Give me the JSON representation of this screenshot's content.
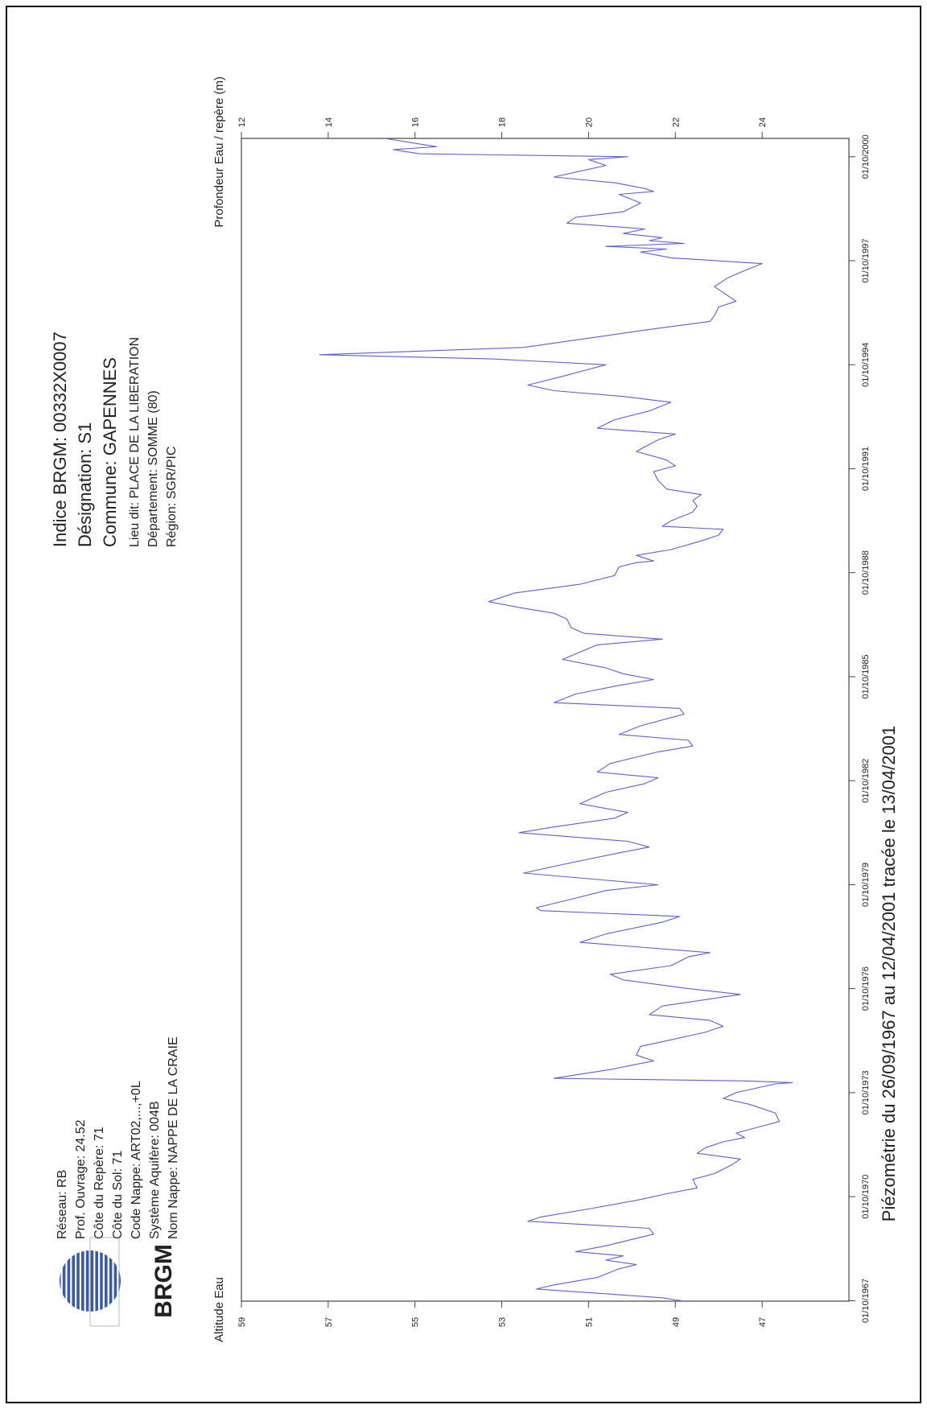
{
  "info_right": {
    "indice": "Indice BRGM: 00332X0007",
    "designation": "Désignation: S1",
    "commune": "Commune: GAPENNES",
    "lieu_dit": "Lieu dit: PLACE DE LA LIBERATION",
    "departement": "Département: SOMME (80)",
    "region": "Région: SGR/PIC"
  },
  "info_left": {
    "reseau": "Réseau: RB",
    "prof_ouvrage": "Prof. Ouvrage: 24.52",
    "cote_repere": "Côte du Repère: 71",
    "cote_sol": "Côte du Sol: 71",
    "code_nappe": "Code Nappe: ART02,...,+0L",
    "systeme_aquifere": "Système Aquifère: 004B",
    "nom_nappe": "Nom Nappe: NAPPE DE LA CRAIE"
  },
  "logo": {
    "text": "BRGM",
    "color": "#3a5aa8"
  },
  "footer_title": "Piézométrie du 26/09/1967 au 12/04/2001 tracée le 13/04/2001",
  "chart_data": {
    "type": "line",
    "orientation": "rotated-90-ccw",
    "line_color": "#5b5fd6",
    "x_axis": {
      "ticks": [
        "01/10/1967",
        "01/10/1970",
        "01/10/1973",
        "01/10/1976",
        "01/10/1979",
        "01/10/1982",
        "01/10/1985",
        "01/10/1988",
        "01/10/1991",
        "01/10/1994",
        "01/10/1997",
        "01/10/2000"
      ],
      "range": [
        "1967-09-26",
        "2001-04-12"
      ]
    },
    "y_left": {
      "label": "Altitude Eau",
      "ticks": [
        59,
        57,
        55,
        53,
        51,
        49,
        47
      ],
      "range": [
        45,
        59
      ]
    },
    "y_right": {
      "label": "Profondeur Eau / repère (m)",
      "ticks": [
        12,
        14,
        16,
        18,
        20,
        22,
        24
      ],
      "range": [
        12,
        26
      ]
    },
    "series": [
      {
        "points": [
          [
            "1967-09-26",
            48.8
          ],
          [
            "1967-11-01",
            49.3
          ],
          [
            "1968-02-01",
            52.2
          ],
          [
            "1968-03-15",
            51.8
          ],
          [
            "1968-06-01",
            50.8
          ],
          [
            "1968-09-01",
            50.3
          ],
          [
            "1968-10-15",
            49.9
          ],
          [
            "1968-12-01",
            50.6
          ],
          [
            "1969-01-15",
            50.2
          ],
          [
            "1969-03-01",
            51.3
          ],
          [
            "1969-05-01",
            50.6
          ],
          [
            "1969-09-01",
            49.5
          ],
          [
            "1969-11-01",
            49.6
          ],
          [
            "1970-01-15",
            52.4
          ],
          [
            "1970-03-01",
            52.1
          ],
          [
            "1970-06-01",
            50.9
          ],
          [
            "1970-09-01",
            49.8
          ],
          [
            "1970-11-01",
            49.2
          ],
          [
            "1971-01-01",
            48.5
          ],
          [
            "1971-04-01",
            48.6
          ],
          [
            "1971-06-01",
            48.1
          ],
          [
            "1971-09-01",
            47.7
          ],
          [
            "1971-11-01",
            47.5
          ],
          [
            "1972-01-01",
            48.5
          ],
          [
            "1972-03-01",
            48.3
          ],
          [
            "1972-05-01",
            47.9
          ],
          [
            "1972-06-15",
            47.4
          ],
          [
            "1972-08-01",
            47.6
          ],
          [
            "1972-10-01",
            47.1
          ],
          [
            "1972-12-01",
            46.6
          ],
          [
            "1973-03-01",
            46.7
          ],
          [
            "1973-06-01",
            47.3
          ],
          [
            "1973-08-01",
            47.9
          ],
          [
            "1973-10-01",
            47.6
          ],
          [
            "1974-01-01",
            46.7
          ],
          [
            "1974-01-15",
            46.3
          ],
          [
            "1974-02-01",
            47.3
          ],
          [
            "1974-03-01",
            51.8
          ],
          [
            "1974-06-01",
            50.5
          ],
          [
            "1974-09-01",
            49.5
          ],
          [
            "1974-11-01",
            49.9
          ],
          [
            "1975-02-01",
            49.8
          ],
          [
            "1975-04-01",
            49.2
          ],
          [
            "1975-07-01",
            48.3
          ],
          [
            "1975-09-01",
            47.9
          ],
          [
            "1975-11-01",
            48.2
          ],
          [
            "1976-01-01",
            49.6
          ],
          [
            "1976-04-01",
            49.3
          ],
          [
            "1976-08-01",
            47.5
          ],
          [
            "1976-10-01",
            48.7
          ],
          [
            "1977-01-01",
            50.2
          ],
          [
            "1977-03-01",
            50.5
          ],
          [
            "1977-06-01",
            49.1
          ],
          [
            "1977-09-01",
            48.7
          ],
          [
            "1977-10-15",
            48.2
          ],
          [
            "1978-02-01",
            51.2
          ],
          [
            "1978-05-01",
            50.6
          ],
          [
            "1978-09-01",
            49.3
          ],
          [
            "1978-11-01",
            48.9
          ],
          [
            "1979-01-01",
            52.1
          ],
          [
            "1979-02-01",
            52.2
          ],
          [
            "1979-05-01",
            51.4
          ],
          [
            "1979-08-01",
            50.6
          ],
          [
            "1979-10-01",
            49.4
          ],
          [
            "1980-02-01",
            52.5
          ],
          [
            "1980-05-01",
            51.6
          ],
          [
            "1980-09-01",
            50.3
          ],
          [
            "1980-11-01",
            49.6
          ],
          [
            "1981-01-01",
            50.1
          ],
          [
            "1981-04-01",
            52.6
          ],
          [
            "1981-06-01",
            51.8
          ],
          [
            "1981-09-01",
            50.4
          ],
          [
            "1981-11-01",
            50.1
          ],
          [
            "1982-02-01",
            51.2
          ],
          [
            "1982-06-01",
            50.6
          ],
          [
            "1982-09-01",
            49.7
          ],
          [
            "1982-11-01",
            49.4
          ],
          [
            "1983-01-01",
            50.8
          ],
          [
            "1983-04-01",
            50.5
          ],
          [
            "1983-08-01",
            49.4
          ],
          [
            "1983-10-01",
            48.6
          ],
          [
            "1983-12-01",
            48.7
          ],
          [
            "1984-02-01",
            50.3
          ],
          [
            "1984-05-01",
            49.8
          ],
          [
            "1984-09-01",
            48.8
          ],
          [
            "1984-11-01",
            48.9
          ],
          [
            "1985-01-01",
            51.8
          ],
          [
            "1985-04-01",
            51.3
          ],
          [
            "1985-07-01",
            50.3
          ],
          [
            "1985-09-01",
            49.5
          ],
          [
            "1985-11-01",
            50.2
          ],
          [
            "1986-01-01",
            50.6
          ],
          [
            "1986-04-01",
            51.6
          ],
          [
            "1986-09-01",
            50.8
          ],
          [
            "1986-11-01",
            49.3
          ],
          [
            "1987-01-01",
            51.1
          ],
          [
            "1987-03-01",
            51.4
          ],
          [
            "1987-06-01",
            51.5
          ],
          [
            "1987-08-01",
            51.8
          ],
          [
            "1987-10-01",
            52.6
          ],
          [
            "1987-12-01",
            53.3
          ],
          [
            "1988-03-01",
            52.7
          ],
          [
            "1988-06-01",
            51.2
          ],
          [
            "1988-09-01",
            50.4
          ],
          [
            "1988-12-01",
            50.3
          ],
          [
            "1989-01-15",
            49.9
          ],
          [
            "1989-02-01",
            49.5
          ],
          [
            "1989-04-01",
            49.9
          ],
          [
            "1989-06-01",
            49.1
          ],
          [
            "1989-09-01",
            48.4
          ],
          [
            "1989-11-01",
            48.0
          ],
          [
            "1990-01-01",
            47.9
          ],
          [
            "1990-02-01",
            49.3
          ],
          [
            "1990-04-01",
            49.1
          ],
          [
            "1990-07-01",
            48.6
          ],
          [
            "1990-09-01",
            48.5
          ],
          [
            "1990-11-01",
            48.6
          ],
          [
            "1991-01-01",
            48.4
          ],
          [
            "1991-03-01",
            49.2
          ],
          [
            "1991-06-01",
            49.4
          ],
          [
            "1991-09-01",
            49.5
          ],
          [
            "1991-11-01",
            49.0
          ],
          [
            "1992-01-01",
            49.2
          ],
          [
            "1992-04-01",
            49.9
          ],
          [
            "1992-08-01",
            49.4
          ],
          [
            "1992-10-01",
            49.0
          ],
          [
            "1992-12-01",
            50.8
          ],
          [
            "1993-03-01",
            50.4
          ],
          [
            "1993-06-01",
            49.6
          ],
          [
            "1993-09-01",
            49.1
          ],
          [
            "1993-11-01",
            50.2
          ],
          [
            "1994-01-01",
            51.8
          ],
          [
            "1994-03-01",
            52.4
          ],
          [
            "1994-06-01",
            51.6
          ],
          [
            "1994-08-01",
            51.1
          ],
          [
            "1994-10-01",
            50.6
          ],
          [
            "1994-12-01",
            53.2
          ],
          [
            "1995-01-15",
            57.2
          ],
          [
            "1995-04-01",
            52.5
          ],
          [
            "1995-07-01",
            51.1
          ],
          [
            "1995-10-01",
            49.7
          ],
          [
            "1996-01-01",
            48.2
          ],
          [
            "1996-03-01",
            48.1
          ],
          [
            "1996-06-01",
            48.0
          ],
          [
            "1996-08-01",
            47.6
          ],
          [
            "1996-10-01",
            47.8
          ],
          [
            "1997-01-01",
            48.1
          ],
          [
            "1997-04-01",
            47.8
          ],
          [
            "1997-06-01",
            47.5
          ],
          [
            "1997-09-01",
            47.0
          ],
          [
            "1997-11-01",
            49.1
          ],
          [
            "1998-01-01",
            49.8
          ],
          [
            "1998-02-01",
            49.2
          ],
          [
            "1998-03-01",
            50.6
          ],
          [
            "1998-04-01",
            48.8
          ],
          [
            "1998-05-01",
            49.6
          ],
          [
            "1998-06-01",
            49.3
          ],
          [
            "1998-07-15",
            50.2
          ],
          [
            "1998-09-01",
            49.7
          ],
          [
            "1998-11-01",
            51.5
          ],
          [
            "1999-01-01",
            51.3
          ],
          [
            "1999-03-01",
            50.2
          ],
          [
            "1999-06-01",
            49.8
          ],
          [
            "1999-09-01",
            50.3
          ],
          [
            "1999-10-01",
            49.5
          ],
          [
            "1999-11-01",
            49.7
          ],
          [
            "2000-01-01",
            50.4
          ],
          [
            "2000-03-01",
            51.8
          ],
          [
            "2000-05-01",
            51.2
          ],
          [
            "2000-07-01",
            50.6
          ],
          [
            "2000-09-01",
            51.0
          ],
          [
            "2000-10-01",
            50.1
          ],
          [
            "2000-11-01",
            54.9
          ],
          [
            "2000-12-15",
            55.5
          ],
          [
            "2001-01-15",
            54.5
          ],
          [
            "2001-04-12",
            55.7
          ]
        ]
      }
    ]
  }
}
